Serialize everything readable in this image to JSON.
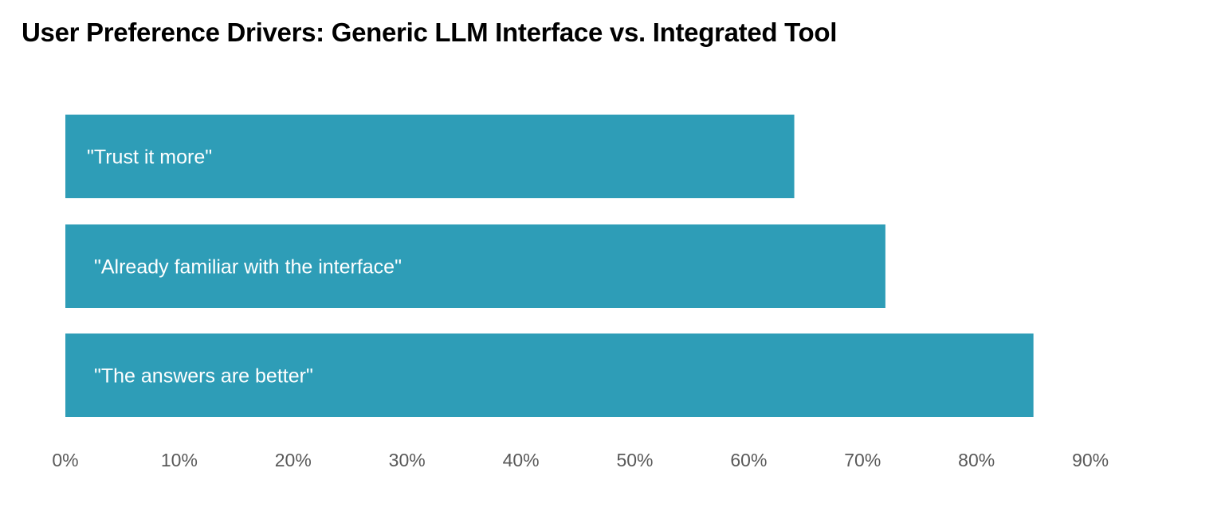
{
  "chart_data": {
    "type": "bar",
    "orientation": "horizontal",
    "title": "User Preference Drivers: Generic LLM Interface vs. Integrated Tool",
    "categories": [
      "\"Trust it more\"",
      "\"Already familiar with the interface\"",
      "\"The answers are better\""
    ],
    "values": [
      64,
      72,
      85
    ],
    "xlim": [
      0,
      90
    ],
    "xticks": [
      0,
      10,
      20,
      30,
      40,
      50,
      60,
      70,
      80,
      90
    ],
    "tick_labels": [
      "0%",
      "10%",
      "20%",
      "30%",
      "40%",
      "50%",
      "60%",
      "70%",
      "80%",
      "90%"
    ],
    "xlabel": "",
    "ylabel": "",
    "grid": false,
    "legend": "none",
    "bar_color": "#2E9DB7",
    "label_color": "#FFFFFF",
    "tick_color": "#595959"
  }
}
